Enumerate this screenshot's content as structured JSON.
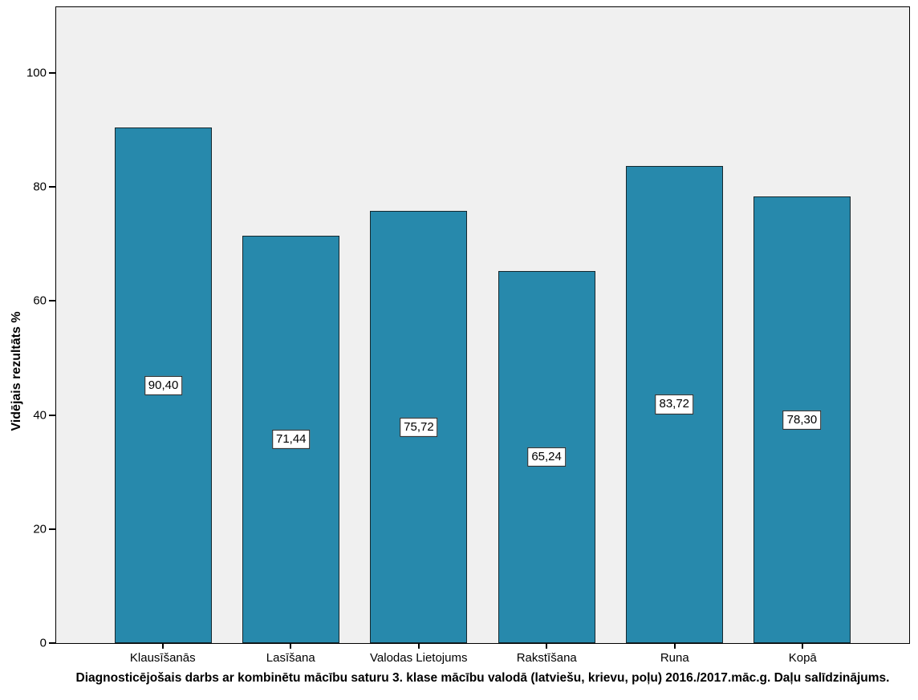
{
  "chart_data": {
    "type": "bar",
    "categories": [
      "Klausīšanās",
      "Lasīšana",
      "Valodas Lietojums",
      "Rakstīšana",
      "Runa",
      "Kopā"
    ],
    "values": [
      90.4,
      71.44,
      75.72,
      65.24,
      83.72,
      78.3
    ],
    "value_labels": [
      "90,40",
      "71,44",
      "75,72",
      "65,24",
      "83,72",
      "78,30"
    ],
    "title": "Diagnosticējošais darbs ar kombinētu mācību saturu 3. klase mācību valodā (latviešu, krievu, poļu) 2016./2017.māc.g. Daļu salīdzinājums.",
    "xlabel": "",
    "ylabel": "Vidējais rezultāts %",
    "yticks": [
      0,
      20,
      40,
      60,
      80,
      100
    ],
    "ylim": [
      0,
      111.5
    ],
    "grid": false,
    "legend": "none",
    "colors": {
      "bar_fill": "#2789AC",
      "bar_border": "#16282e",
      "plot_background": "#F0F0F0",
      "label_box_background": "#FFFFFF",
      "label_box_border": "#1a1a1a",
      "axis_frame": "#000000"
    }
  }
}
